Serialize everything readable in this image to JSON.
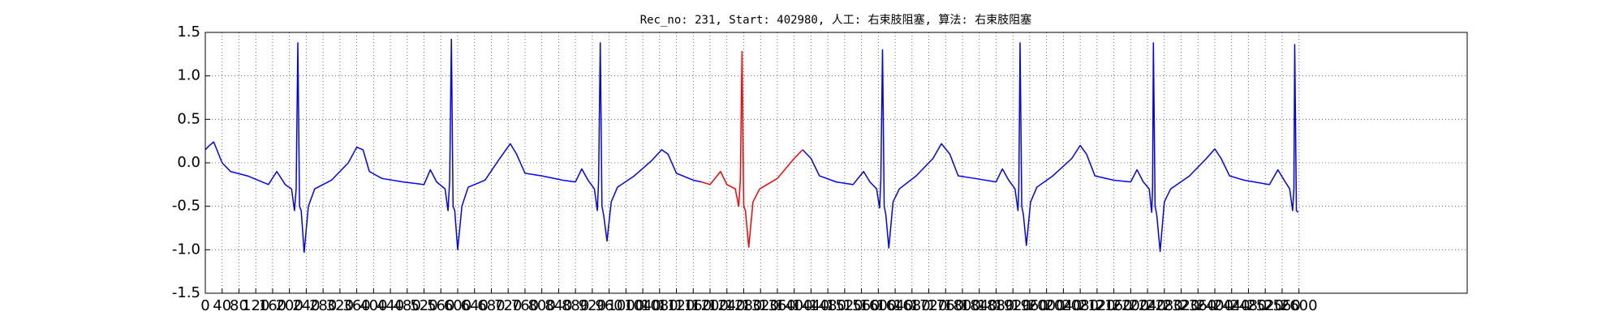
{
  "chart_data": {
    "type": "line",
    "title": "Rec_no: 231, Start: 402980, 人工: 右束肢阻塞, 算法: 右束肢阻塞",
    "xlim": [
      0,
      3000
    ],
    "ylim": [
      -1.5,
      1.5
    ],
    "xticks": [
      0,
      40,
      80,
      120,
      160,
      200,
      240,
      280,
      320,
      360,
      400,
      440,
      480,
      520,
      560,
      600,
      640,
      680,
      720,
      760,
      800,
      840,
      880,
      920,
      960,
      1000,
      1040,
      1080,
      1120,
      1160,
      1200,
      1240,
      1280,
      1320,
      1360,
      1400,
      1440,
      1480,
      1520,
      1560,
      1600,
      1640,
      1680,
      1720,
      1760,
      1800,
      1840,
      1880,
      1920,
      1960,
      2000,
      2040,
      2080,
      2120,
      2160,
      2200,
      2240,
      2280,
      2320,
      2360,
      2400,
      2440,
      2480,
      2520,
      2560,
      2600
    ],
    "yticks": [
      -1.5,
      {
        "value": -1,
        "label": "-1.0"
      },
      -0.5,
      {
        "value": 0,
        "label": "0.0"
      },
      0.5,
      {
        "value": 1,
        "label": "1.0"
      },
      1.5
    ],
    "grid": true,
    "series": [
      {
        "color": "#0000ff",
        "x": [
          0,
          10,
          20,
          40,
          60,
          100,
          150,
          170,
          190,
          205,
          212,
          216,
          220,
          224,
          228,
          235,
          245,
          260,
          300,
          340,
          360,
          375,
          390,
          420,
          470,
          520,
          535,
          550,
          570,
          577,
          581,
          585,
          589,
          593,
          600,
          610,
          625,
          665,
          700,
          725,
          740,
          760,
          800,
          850,
          880,
          895,
          910,
          925,
          932,
          935,
          939,
          943,
          947,
          955,
          965,
          980,
          1020,
          1060,
          1085,
          1100,
          1120,
          1160,
          1180,
          1300,
          1420,
          1440,
          1460,
          1500,
          1540,
          1565,
          1580,
          1596,
          1603,
          1606,
          1610,
          1614,
          1618,
          1625,
          1635,
          1650,
          1690,
          1730,
          1750,
          1770,
          1790,
          1830,
          1880,
          1895,
          1910,
          1925,
          1932,
          1934,
          1937,
          1941,
          1945,
          1952,
          1962,
          1977,
          2015,
          2060,
          2080,
          2095,
          2115,
          2160,
          2200,
          2215,
          2230,
          2244,
          2250,
          2252,
          2254,
          2258,
          2262,
          2270,
          2280,
          2295,
          2340,
          2380,
          2400,
          2415,
          2435,
          2470,
          2530,
          2550,
          2565,
          2578,
          2585,
          2588,
          2590,
          2594,
          2598
        ],
        "values": [
          0.15,
          0.2,
          0.24,
          0.0,
          -0.1,
          -0.15,
          -0.25,
          -0.1,
          -0.25,
          -0.3,
          -0.55,
          -0.3,
          1.38,
          -0.5,
          -0.55,
          -1.03,
          -0.5,
          -0.3,
          -0.2,
          0.0,
          0.18,
          0.15,
          -0.1,
          -0.18,
          -0.22,
          -0.25,
          -0.08,
          -0.22,
          -0.3,
          -0.55,
          -0.2,
          1.42,
          -0.5,
          -0.55,
          -1.0,
          -0.5,
          -0.28,
          -0.2,
          0.05,
          0.22,
          0.1,
          -0.12,
          -0.15,
          -0.2,
          -0.22,
          -0.07,
          -0.2,
          -0.3,
          -0.55,
          -0.2,
          1.38,
          -0.5,
          -0.6,
          -0.9,
          -0.45,
          -0.28,
          -0.15,
          0.02,
          0.15,
          0.1,
          -0.12,
          -0.2,
          -0.22,
          null,
          0.15,
          0.05,
          -0.15,
          -0.22,
          -0.25,
          -0.1,
          -0.22,
          -0.3,
          -0.52,
          -0.2,
          1.3,
          -0.5,
          -0.6,
          -0.98,
          -0.45,
          -0.3,
          -0.15,
          0.05,
          0.22,
          0.1,
          -0.15,
          -0.18,
          -0.22,
          -0.07,
          -0.2,
          -0.3,
          -0.55,
          -0.3,
          1.38,
          -0.5,
          -0.6,
          -0.95,
          -0.45,
          -0.28,
          -0.15,
          0.05,
          0.2,
          0.1,
          -0.15,
          -0.2,
          -0.22,
          -0.08,
          -0.22,
          -0.3,
          -0.57,
          -0.3,
          1.38,
          -0.5,
          -0.6,
          -1.02,
          -0.45,
          -0.3,
          -0.15,
          0.05,
          0.16,
          0.05,
          -0.15,
          -0.2,
          -0.25,
          -0.08,
          -0.2,
          -0.3,
          -0.55,
          -0.3,
          1.36,
          -0.55,
          -0.57
        ]
      },
      {
        "color": "#ff0000",
        "x": [
          1180,
          1200,
          1225,
          1240,
          1260,
          1268,
          1272,
          1276,
          1280,
          1284,
          1292,
          1302,
          1318,
          1360,
          1400,
          1420
        ],
        "values": [
          -0.22,
          -0.25,
          -0.1,
          -0.25,
          -0.3,
          -0.5,
          -0.2,
          1.28,
          -0.5,
          -0.55,
          -0.97,
          -0.45,
          -0.3,
          -0.18,
          0.05,
          0.15
        ]
      }
    ]
  }
}
